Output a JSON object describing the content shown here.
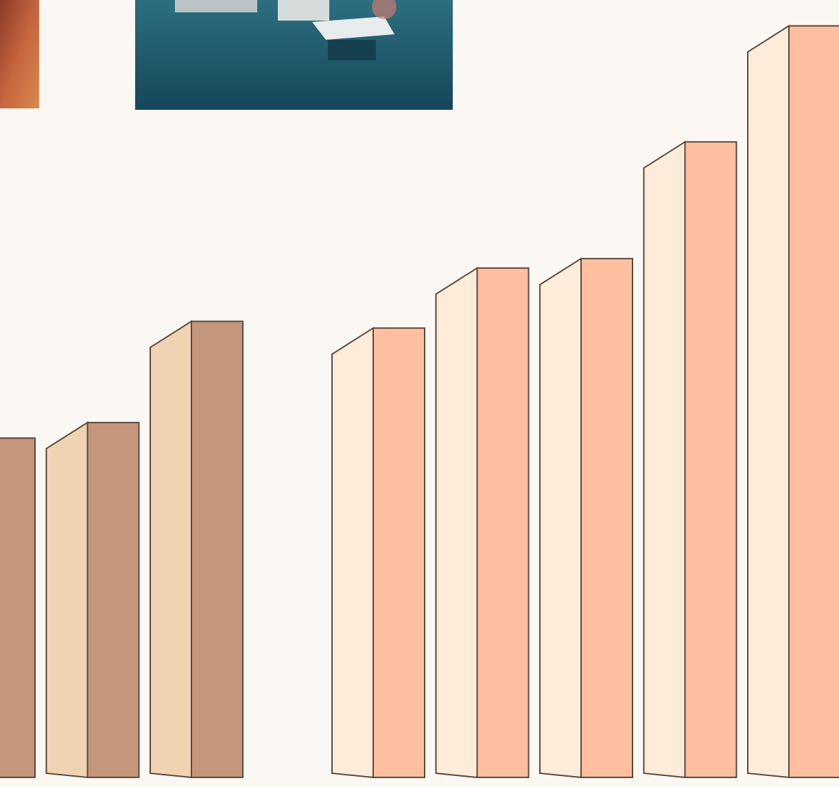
{
  "chart_data": [
    {
      "type": "bar3d",
      "values": [
        503,
        526,
        676
      ],
      "color": "#c4967c",
      "side_color": "#f0d3b2",
      "ylim": [
        0,
        1133
      ]
    },
    {
      "type": "bar3d",
      "values": [
        666,
        755,
        769,
        942,
        1114
      ],
      "color": "#fdbf9f",
      "side_color": "#fdecd9",
      "ylim": [
        0,
        1133
      ]
    }
  ]
}
